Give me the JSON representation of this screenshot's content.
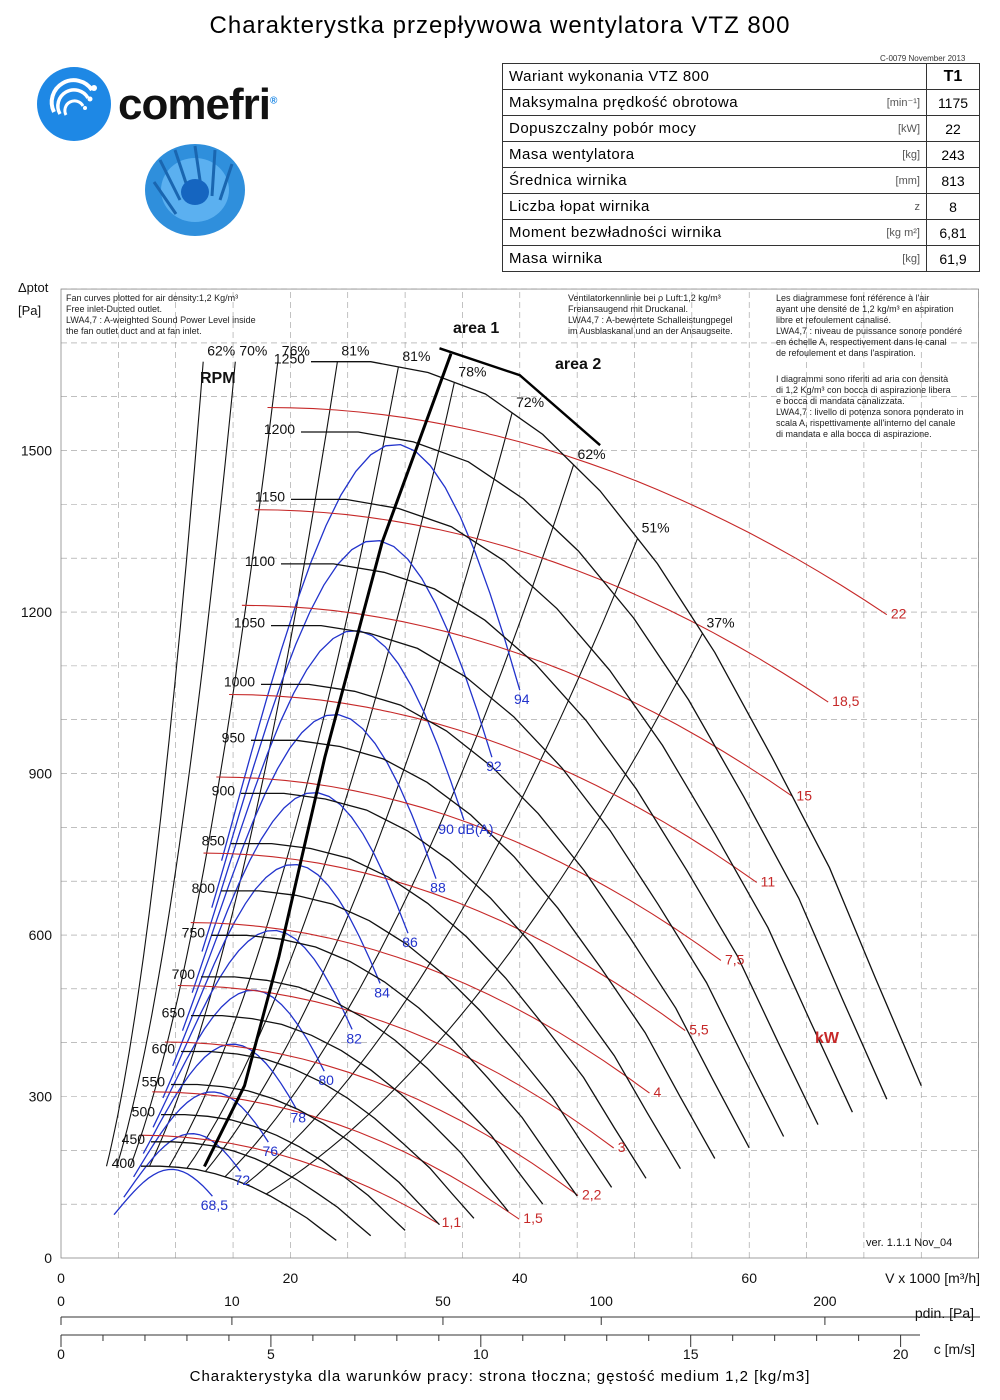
{
  "title": "Charakterystka przepływowa wentylatora VTZ 800",
  "doc_code": "C-0079 November 2013",
  "logo": {
    "name": "comefri",
    "registered_mark": "®",
    "icon": "comefri-swirl-logo-icon"
  },
  "fan_image_icon": "centrifugal-fan-wheel-icon",
  "colors": {
    "brand_blue": "#1e88e5",
    "rpm_curve": "#111111",
    "power_curve": "#c62828",
    "noise_curve": "#2233cc",
    "grid": "#999999"
  },
  "spec_table": {
    "header": {
      "label": "Wariant wykonania VTZ 800",
      "unit": "",
      "value": "T1"
    },
    "rows": [
      {
        "label": "Maksymalna prędkość obrotowa",
        "unit": "[min⁻¹]",
        "value": "1175"
      },
      {
        "label": "Dopuszczalny pobór mocy",
        "unit": "[kW]",
        "value": "22"
      },
      {
        "label": "Masa wentylatora",
        "unit": "[kg]",
        "value": "243"
      },
      {
        "label": "Średnica wirnika",
        "unit": "[mm]",
        "value": "813"
      },
      {
        "label": "Liczba łopat wirnika",
        "unit": "z",
        "value": "8"
      },
      {
        "label": "Moment bezwładności wirnika",
        "unit": "[kg m²]",
        "value": "6,81"
      },
      {
        "label": "Masa wirnika",
        "unit": "[kg]",
        "value": "61,9"
      }
    ]
  },
  "notes": {
    "en": [
      "Fan curves plotted for air density:1,2 Kg/m³",
      "Free inlet-Ducted outlet.",
      "LWA4,7 : A-weighted Sound Power Level inside",
      "the fan outlet duct and at fan inlet."
    ],
    "de": [
      "Ventilatorkennlinie bei ρ Luft:1,2 kg/m³",
      "Freiansaugend mit Druckanal.",
      "LWA4,7 : A-bewertete Schalleistungpegel",
      "im Ausblaskanal und an der Ansaugseite."
    ],
    "fr": [
      "Les diagrammese font référence à l'air",
      "ayant une densité de 1,2 kg/m³ en aspiration",
      "libre et refoulement canalisé.",
      "LWA4,7 : niveau de puissance sonore pondéré",
      "en échelle A, respectivement dans le canal",
      "de refoulement et dans l'aspiration."
    ],
    "it": [
      "I diagrammi sono riferiti ad aria con densità",
      "di 1,2 Kg/m³ con bocca di aspirazione libera",
      "e bocca di mandata canalizzata.",
      "LWA4,7 : livello di potenza sonora ponderato in",
      "scala A, rispettivamente all'interno del canale",
      "di mandata e alla bocca di aspirazione."
    ]
  },
  "version": "ver. 1.1.1 Nov_04",
  "footer": "Charakterystyka dla warunków pracy: strona tłoczna; gęstość medium 1,2 [kg/m3]",
  "chart_data": {
    "type": "line",
    "ylabel_top": "Δptot",
    "ylabel_unit": "[Pa]",
    "xlabel": "V x 1000 [m³/h]",
    "xlabel2": "pdin. [Pa]",
    "xlabel3": "c [m/s]",
    "xlim": [
      0,
      80
    ],
    "ylim": [
      0,
      1800
    ],
    "x_ticks": [
      0,
      20,
      40,
      60
    ],
    "y_ticks": [
      0,
      300,
      600,
      900,
      1200,
      1500
    ],
    "pdin_ticks": [
      {
        "label": "0",
        "x": 0
      },
      {
        "label": "10",
        "x": 14.9
      },
      {
        "label": "50",
        "x": 33.3
      },
      {
        "label": "100",
        "x": 47.1
      },
      {
        "label": "200",
        "x": 66.6
      }
    ],
    "c_ticks": [
      {
        "label": "0",
        "x": 0
      },
      {
        "label": "5",
        "x": 18.3
      },
      {
        "label": "10",
        "x": 36.6
      },
      {
        "label": "15",
        "x": 54.9
      },
      {
        "label": "20",
        "x": 73.2
      }
    ],
    "grid": true,
    "rpm_label": "RPM",
    "rpm_speeds": [
      400,
      450,
      500,
      550,
      600,
      650,
      700,
      750,
      800,
      850,
      900,
      950,
      1000,
      1050,
      1100,
      1150,
      1200,
      1250
    ],
    "rpm_reference": {
      "rpm": 1250,
      "points": [
        [
          21.8,
          1665
        ],
        [
          27,
          1665
        ],
        [
          32,
          1645
        ],
        [
          37,
          1605
        ],
        [
          42,
          1530
        ],
        [
          47,
          1425
        ],
        [
          52,
          1290
        ],
        [
          57,
          1125
        ],
        [
          62,
          930
        ],
        [
          67,
          725
        ],
        [
          71,
          520
        ],
        [
          75,
          320
        ]
      ]
    },
    "efficiency_lines": [
      {
        "label": "62%",
        "k": 12.4
      },
      {
        "label": "70%",
        "k": 15.2
      },
      {
        "label": "76%",
        "k": 18.9
      },
      {
        "label": "81%",
        "k": 24.1
      },
      {
        "label": "81%",
        "k": 29.5
      },
      {
        "label": "78%",
        "k": 34.7
      },
      {
        "label": "72%",
        "k": 40.5
      },
      {
        "label": "62%",
        "k": 47.5
      },
      {
        "label": "51%",
        "k": 56.1
      },
      {
        "label": "37%",
        "k": 67.0
      }
    ],
    "area_labels": [
      "area 1",
      "area 2"
    ],
    "power_label": "kW",
    "power_levels": [
      "1,1",
      "1,5",
      "2,2",
      "3",
      "4",
      "5,5",
      "7,5",
      "11",
      "15",
      "18,5",
      "22"
    ],
    "noise_unit": "dB(A)",
    "noise_levels": [
      "68,5",
      "72",
      "76",
      "78",
      "80",
      "82",
      "84",
      "86",
      "88",
      "90",
      "92",
      "94"
    ]
  }
}
